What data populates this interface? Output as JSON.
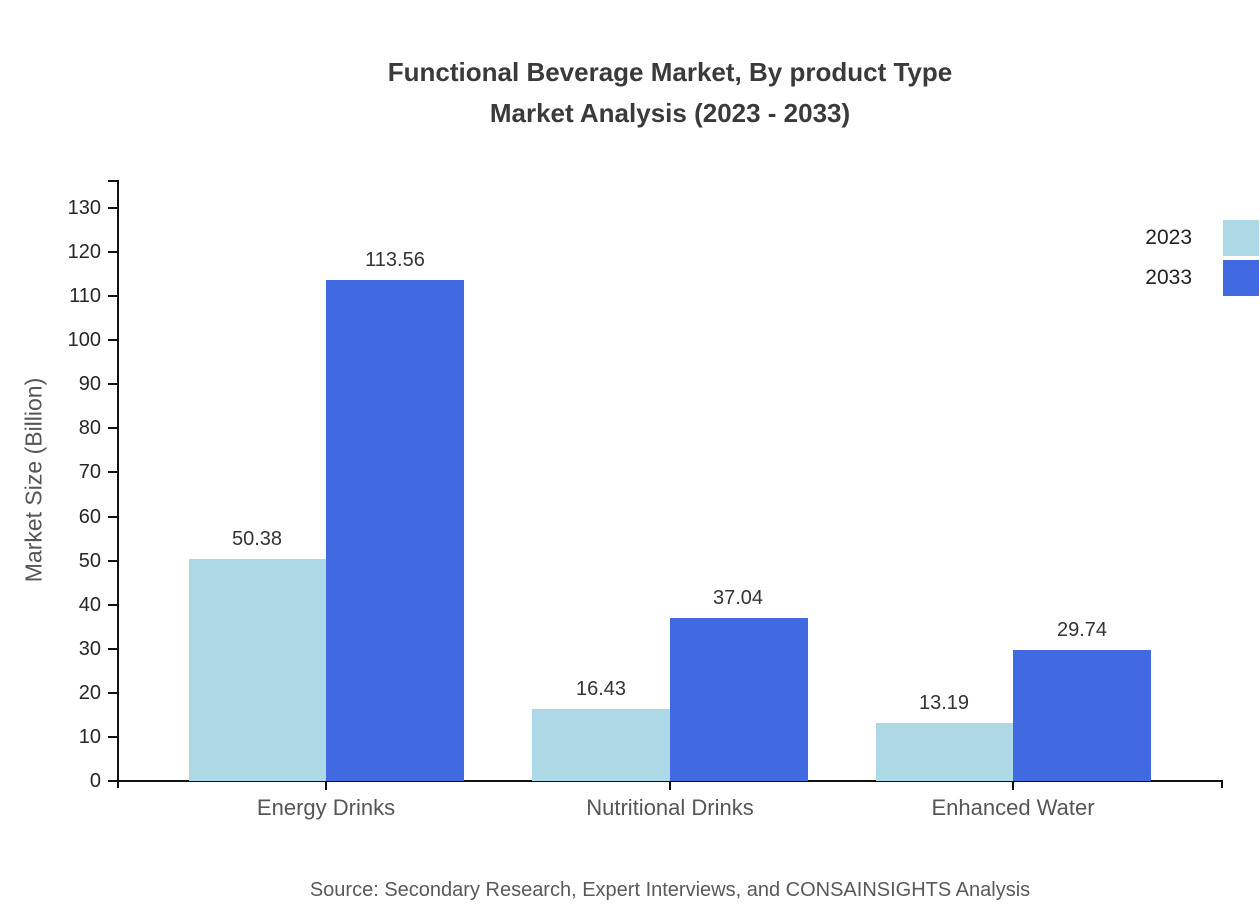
{
  "title": {
    "line1": "Functional Beverage Market, By product Type",
    "line2": "Market Analysis (2023 - 2033)"
  },
  "legend": {
    "items": [
      {
        "label": "2023",
        "color": "#ADD8E6"
      },
      {
        "label": "2033",
        "color": "#4169E1"
      }
    ]
  },
  "y_axis": {
    "label": "Market Size (Billion)"
  },
  "source": "Source: Secondary Research, Expert Interviews, and CONSAINSIGHTS Analysis",
  "chart_data": {
    "type": "bar",
    "title": "Functional Beverage Market, By product Type Market Analysis (2023 - 2033)",
    "categories": [
      "Energy Drinks",
      "Nutritional Drinks",
      "Enhanced Water"
    ],
    "series": [
      {
        "name": "2023",
        "color": "#ADD8E6",
        "values": [
          50.38,
          16.43,
          13.19
        ]
      },
      {
        "name": "2033",
        "color": "#4169E1",
        "values": [
          113.56,
          37.04,
          29.74
        ]
      }
    ],
    "xlabel": "",
    "ylabel": "Market Size (Billion)",
    "ylim": [
      0,
      130
    ],
    "ytick_step": 10,
    "grid": false,
    "legend_position": "top-right",
    "value_labels": true
  }
}
